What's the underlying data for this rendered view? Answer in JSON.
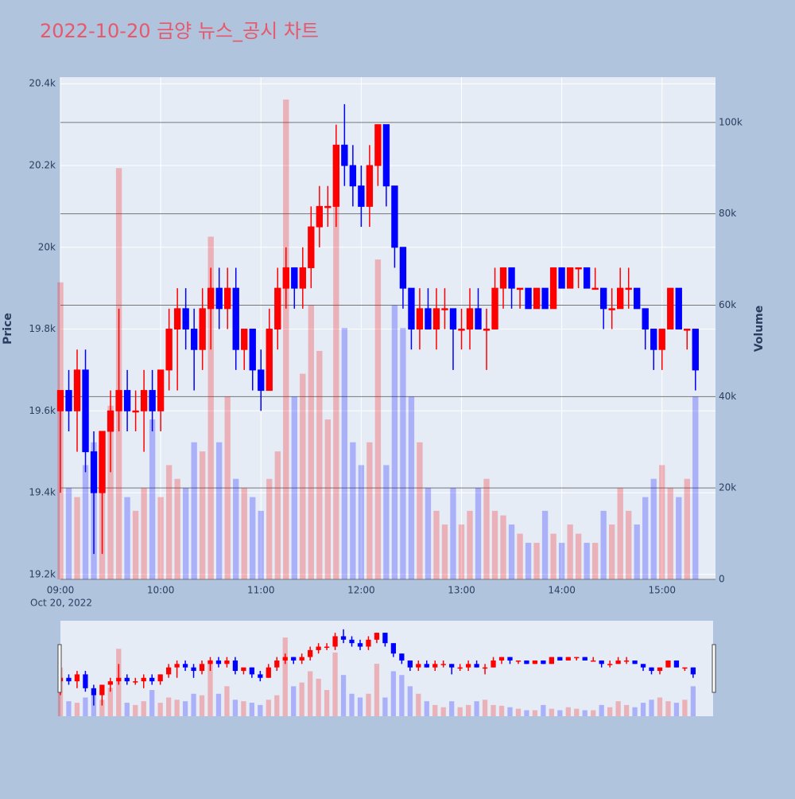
{
  "chart_data": {
    "type": "candlestick",
    "title": "2022-10-20 금양 뉴스_공시 차트",
    "y_title": "Price",
    "y2_title": "Volume",
    "x_date_label": "Oct 20, 2022",
    "increasing_color": "#ff0000",
    "decreasing_color": "#0000ff",
    "grid": true,
    "rangeslider": true,
    "xlim": [
      "09:00",
      "15:32"
    ],
    "xticks": [
      "09:00",
      "10:00",
      "11:00",
      "12:00",
      "13:00",
      "14:00",
      "15:00"
    ],
    "ylim": [
      19188,
      20416
    ],
    "yticks": [
      {
        "value": 19200,
        "label": "19.2k"
      },
      {
        "value": 19400,
        "label": "19.4k"
      },
      {
        "value": 19600,
        "label": "19.6k"
      },
      {
        "value": 19800,
        "label": "19.8k"
      },
      {
        "value": 20000,
        "label": "20k"
      },
      {
        "value": 20200,
        "label": "20.2k"
      },
      {
        "value": 20400,
        "label": "20.4k"
      }
    ],
    "y2lim": [
      0,
      109900
    ],
    "y2ticks": [
      0,
      {
        "value": 20000,
        "label": "20k"
      },
      {
        "value": 40000,
        "label": "40k"
      },
      {
        "value": 60000,
        "label": "60k"
      },
      {
        "value": 80000,
        "label": "80k"
      },
      {
        "value": 100000,
        "label": "100k"
      }
    ],
    "x": [
      "09:00",
      "09:05",
      "09:10",
      "09:15",
      "09:20",
      "09:25",
      "09:30",
      "09:35",
      "09:40",
      "09:45",
      "09:50",
      "09:55",
      "10:00",
      "10:05",
      "10:10",
      "10:15",
      "10:20",
      "10:25",
      "10:30",
      "10:35",
      "10:40",
      "10:45",
      "10:50",
      "10:55",
      "11:00",
      "11:05",
      "11:10",
      "11:15",
      "11:20",
      "11:25",
      "11:30",
      "11:35",
      "11:40",
      "11:45",
      "11:50",
      "11:55",
      "12:00",
      "12:05",
      "12:10",
      "12:15",
      "12:20",
      "12:25",
      "12:30",
      "12:35",
      "12:40",
      "12:45",
      "12:50",
      "12:55",
      "13:00",
      "13:05",
      "13:10",
      "13:15",
      "13:20",
      "13:25",
      "13:30",
      "13:35",
      "13:40",
      "13:45",
      "13:50",
      "13:55",
      "14:00",
      "14:05",
      "14:10",
      "14:15",
      "14:20",
      "14:25",
      "14:30",
      "14:35",
      "14:40",
      "14:45",
      "14:50",
      "14:55",
      "15:00",
      "15:05",
      "15:10",
      "15:15",
      "15:20"
    ],
    "open": [
      19600,
      19650,
      19600,
      19700,
      19500,
      19400,
      19550,
      19600,
      19650,
      19600,
      19600,
      19650,
      19600,
      19700,
      19800,
      19850,
      19800,
      19750,
      19850,
      19900,
      19850,
      19900,
      19750,
      19800,
      19700,
      19650,
      19800,
      19900,
      19950,
      19900,
      19950,
      20050,
      20100,
      20100,
      20250,
      20200,
      20150,
      20100,
      20200,
      20300,
      20150,
      20000,
      19900,
      19800,
      19850,
      19800,
      19850,
      19850,
      19800,
      19800,
      19850,
      19800,
      19800,
      19900,
      19950,
      19900,
      19900,
      19850,
      19900,
      19850,
      19950,
      19900,
      19950,
      19950,
      19900,
      19900,
      19850,
      19850,
      19900,
      19900,
      19850,
      19800,
      19750,
      19800,
      19900,
      19800,
      19800
    ],
    "high": [
      19650,
      19700,
      19750,
      19750,
      19550,
      19550,
      19650,
      19850,
      19700,
      19650,
      19700,
      19700,
      19700,
      19850,
      19900,
      19900,
      19850,
      19900,
      19950,
      19950,
      19950,
      19950,
      19800,
      19800,
      19750,
      19850,
      19950,
      20000,
      19950,
      20000,
      20100,
      20150,
      20150,
      20300,
      20350,
      20250,
      20200,
      20250,
      20300,
      20300,
      20150,
      20000,
      19900,
      19900,
      19900,
      19900,
      19900,
      19850,
      19850,
      19900,
      19900,
      19850,
      19950,
      19950,
      19950,
      19900,
      19900,
      19900,
      19900,
      19950,
      19950,
      19950,
      19950,
      19950,
      19950,
      19900,
      19900,
      19950,
      19950,
      19900,
      19850,
      19800,
      19800,
      19900,
      19900,
      19800,
      19800
    ],
    "low": [
      19400,
      19550,
      19500,
      19450,
      19250,
      19250,
      19450,
      19550,
      19550,
      19550,
      19500,
      19550,
      19550,
      19650,
      19650,
      19750,
      19650,
      19700,
      19750,
      19800,
      19800,
      19700,
      19700,
      19650,
      19600,
      19650,
      19750,
      19850,
      19850,
      19850,
      19900,
      20000,
      20050,
      20050,
      20150,
      20100,
      20050,
      20050,
      20150,
      20100,
      19950,
      19850,
      19750,
      19750,
      19800,
      19750,
      19800,
      19700,
      19750,
      19750,
      19800,
      19700,
      19800,
      19850,
      19850,
      19850,
      19850,
      19850,
      19850,
      19850,
      19900,
      19900,
      19900,
      19900,
      19900,
      19800,
      19800,
      19850,
      19850,
      19850,
      19750,
      19700,
      19700,
      19800,
      19800,
      19750,
      19650
    ],
    "close": [
      19650,
      19600,
      19700,
      19500,
      19400,
      19550,
      19600,
      19650,
      19600,
      19600,
      19650,
      19600,
      19700,
      19800,
      19850,
      19800,
      19750,
      19850,
      19900,
      19850,
      19900,
      19750,
      19800,
      19700,
      19650,
      19800,
      19900,
      19950,
      19900,
      19950,
      20050,
      20100,
      20100,
      20250,
      20200,
      20150,
      20100,
      20200,
      20300,
      20150,
      20000,
      19900,
      19800,
      19850,
      19800,
      19850,
      19850,
      19800,
      19800,
      19850,
      19800,
      19800,
      19900,
      19950,
      19900,
      19900,
      19850,
      19900,
      19850,
      19950,
      19900,
      19950,
      19950,
      19900,
      19900,
      19850,
      19850,
      19900,
      19900,
      19850,
      19800,
      19750,
      19800,
      19900,
      19800,
      19800,
      19700
    ],
    "volume": [
      65000,
      20000,
      18000,
      25000,
      30000,
      22000,
      38000,
      90000,
      18000,
      15000,
      20000,
      35000,
      18000,
      25000,
      22000,
      20000,
      30000,
      28000,
      75000,
      30000,
      40000,
      22000,
      20000,
      18000,
      15000,
      22000,
      28000,
      105000,
      40000,
      45000,
      60000,
      50000,
      35000,
      85000,
      55000,
      30000,
      25000,
      30000,
      70000,
      25000,
      60000,
      55000,
      40000,
      30000,
      20000,
      15000,
      12000,
      20000,
      12000,
      15000,
      20000,
      22000,
      15000,
      14000,
      12000,
      10000,
      8000,
      8000,
      15000,
      10000,
      8000,
      12000,
      10000,
      8000,
      8000,
      15000,
      12000,
      20000,
      15000,
      12000,
      18000,
      22000,
      25000,
      20000,
      18000,
      22000,
      40000
    ]
  }
}
